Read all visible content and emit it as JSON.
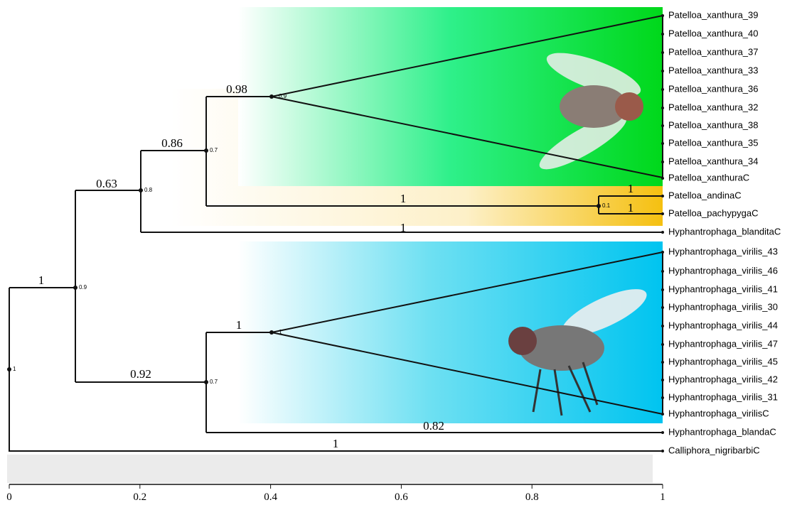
{
  "leaves": [
    "Patelloa_xanthura_39",
    "Patelloa_xanthura_40",
    "Patelloa_xanthura_37",
    "Patelloa_xanthura_33",
    "Patelloa_xanthura_36",
    "Patelloa_xanthura_32",
    "Patelloa_xanthura_38",
    "Patelloa_xanthura_35",
    "Patelloa_xanthura_34",
    "Patelloa_xanthuraC",
    "Patelloa_andinaC",
    "Patelloa_pachypygaC",
    "Hyphantrophaga_blanditaC",
    "Hyphantrophaga_virilis_43",
    "Hyphantrophaga_virilis_46",
    "Hyphantrophaga_virilis_41",
    "Hyphantrophaga_virilis_30",
    "Hyphantrophaga_virilis_44",
    "Hyphantrophaga_virilis_47",
    "Hyphantrophaga_virilis_45",
    "Hyphantrophaga_virilis_42",
    "Hyphantrophaga_virilis_31",
    "Hyphantrophaga_virilisC",
    "Hyphantrophaga_blandaC",
    "Calliphora_nigribarbiC"
  ],
  "branch_labels": [
    1,
    1,
    0.63,
    1,
    0.86,
    0.98,
    1,
    1,
    1,
    0.92,
    1,
    0.82
  ],
  "node_labels": [
    1,
    0.9,
    0.8,
    0.7,
    0.9,
    0.1,
    0.7,
    1
  ],
  "axis": {
    "ticks": [
      0,
      0.2,
      0.4,
      0.6,
      0.8,
      1
    ]
  }
}
